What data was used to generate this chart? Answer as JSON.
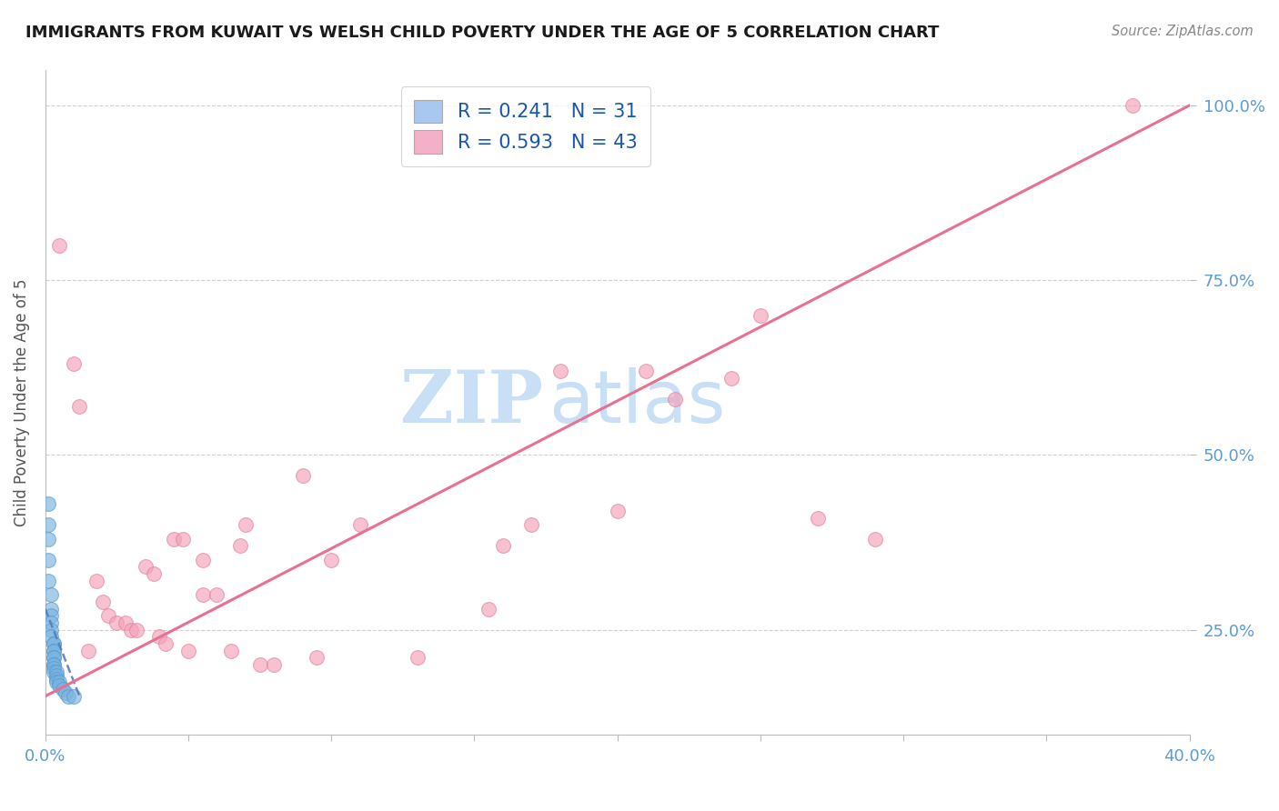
{
  "title": "IMMIGRANTS FROM KUWAIT VS WELSH CHILD POVERTY UNDER THE AGE OF 5 CORRELATION CHART",
  "source_text": "Source: ZipAtlas.com",
  "ylabel": "Child Poverty Under the Age of 5",
  "xlim": [
    0.0,
    0.4
  ],
  "ylim": [
    0.1,
    1.05
  ],
  "xtick_positions": [
    0.0,
    0.05,
    0.1,
    0.15,
    0.2,
    0.25,
    0.3,
    0.35,
    0.4
  ],
  "xticklabels": [
    "0.0%",
    "",
    "",
    "",
    "",
    "",
    "",
    "",
    "40.0%"
  ],
  "ytick_vals": [
    0.25,
    0.5,
    0.75,
    1.0
  ],
  "ytick_labels": [
    "25.0%",
    "50.0%",
    "75.0%",
    "100.0%"
  ],
  "title_color": "#1a1a1a",
  "tick_label_color": "#5b9bd5",
  "watermark_zip": "ZIP",
  "watermark_atlas": "atlas",
  "watermark_color": "#c8dff5",
  "legend_kuwait_color": "#a8c8f0",
  "legend_welsh_color": "#f4b0c8",
  "R_kuwait": 0.241,
  "N_kuwait": 31,
  "R_welsh": 0.593,
  "N_welsh": 43,
  "kuwait_scatter_color": "#7ab3e0",
  "welsh_scatter_color": "#f4a0b8",
  "kuwait_trend_color": "#5577bb",
  "welsh_trend_color": "#e87090",
  "grid_color": "#cccccc",
  "kuwait_points_x": [
    0.001,
    0.001,
    0.001,
    0.001,
    0.001,
    0.002,
    0.002,
    0.002,
    0.002,
    0.002,
    0.002,
    0.003,
    0.003,
    0.003,
    0.003,
    0.003,
    0.003,
    0.003,
    0.003,
    0.003,
    0.003,
    0.004,
    0.004,
    0.004,
    0.004,
    0.005,
    0.005,
    0.006,
    0.007,
    0.008,
    0.01
  ],
  "kuwait_points_y": [
    0.43,
    0.4,
    0.38,
    0.35,
    0.32,
    0.3,
    0.28,
    0.27,
    0.26,
    0.25,
    0.24,
    0.23,
    0.23,
    0.22,
    0.22,
    0.21,
    0.21,
    0.2,
    0.2,
    0.195,
    0.19,
    0.19,
    0.185,
    0.18,
    0.175,
    0.175,
    0.17,
    0.165,
    0.16,
    0.155,
    0.155
  ],
  "welsh_points_x": [
    0.005,
    0.01,
    0.012,
    0.015,
    0.018,
    0.02,
    0.022,
    0.025,
    0.028,
    0.03,
    0.032,
    0.035,
    0.038,
    0.04,
    0.042,
    0.045,
    0.048,
    0.05,
    0.055,
    0.055,
    0.06,
    0.065,
    0.068,
    0.07,
    0.075,
    0.08,
    0.09,
    0.095,
    0.1,
    0.11,
    0.13,
    0.155,
    0.16,
    0.17,
    0.18,
    0.2,
    0.21,
    0.22,
    0.24,
    0.25,
    0.27,
    0.29,
    0.38
  ],
  "welsh_points_y": [
    0.8,
    0.63,
    0.57,
    0.22,
    0.32,
    0.29,
    0.27,
    0.26,
    0.26,
    0.25,
    0.25,
    0.34,
    0.33,
    0.24,
    0.23,
    0.38,
    0.38,
    0.22,
    0.35,
    0.3,
    0.3,
    0.22,
    0.37,
    0.4,
    0.2,
    0.2,
    0.47,
    0.21,
    0.35,
    0.4,
    0.21,
    0.28,
    0.37,
    0.4,
    0.62,
    0.42,
    0.62,
    0.58,
    0.61,
    0.7,
    0.41,
    0.38,
    1.0
  ],
  "kuwait_trend_x": [
    0.0,
    0.012
  ],
  "kuwait_trend_y": [
    0.28,
    0.155
  ],
  "welsh_trend_x": [
    0.0,
    0.4
  ],
  "welsh_trend_y": [
    0.155,
    1.0
  ]
}
